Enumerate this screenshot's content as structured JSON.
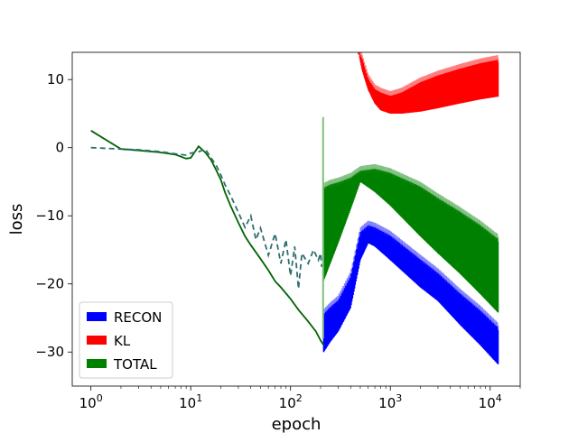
{
  "chart_data": {
    "type": "line",
    "xlabel": "epoch",
    "ylabel": "loss",
    "x_scale": "log",
    "xlim": [
      0.65,
      20000
    ],
    "ylim": [
      -35,
      14
    ],
    "x_ticks": [
      1,
      10,
      100,
      1000,
      10000
    ],
    "x_tick_labels": [
      "10^0",
      "10^1",
      "10^2",
      "10^3",
      "10^4"
    ],
    "y_ticks": [
      -30,
      -20,
      -10,
      0,
      10
    ],
    "y_tick_labels": [
      "−30",
      "−20",
      "−10",
      "0",
      "10"
    ],
    "grid": false,
    "legend_position": "lower-left",
    "legend": [
      {
        "label": "RECON",
        "color": "#0000ff"
      },
      {
        "label": "KL",
        "color": "#ff0000"
      },
      {
        "label": "TOTAL",
        "color": "#008000"
      }
    ],
    "series": [
      {
        "name": "TOTAL",
        "color": "#006400",
        "style": "solid",
        "x": [
          1,
          2,
          3,
          5,
          7,
          9,
          10,
          12,
          14,
          16,
          18,
          20,
          22,
          25,
          30,
          35,
          40,
          50,
          60,
          70,
          80,
          100,
          120,
          150,
          180,
          200,
          215
        ],
        "y": [
          2.5,
          -0.2,
          -0.4,
          -0.7,
          -1.0,
          -1.6,
          -1.5,
          0.2,
          -0.7,
          -1.8,
          -3.3,
          -4.7,
          -6.5,
          -8.5,
          -11.0,
          -13.0,
          -14.3,
          -16.3,
          -18.0,
          -19.6,
          -20.5,
          -22.2,
          -23.8,
          -25.5,
          -27.0,
          -28.3,
          -29.0
        ]
      },
      {
        "name": "",
        "color": "#2f6f6f",
        "style": "dashed",
        "x": [
          1,
          2,
          3,
          5,
          7,
          9,
          10,
          12,
          14,
          16,
          18,
          20,
          22,
          25,
          30,
          35,
          40,
          45,
          50,
          60,
          70,
          80,
          90,
          100,
          110,
          120,
          130,
          150,
          170,
          190,
          200,
          205
        ],
        "y": [
          0,
          -0.2,
          -0.3,
          -0.6,
          -0.9,
          -1.1,
          -0.8,
          -0.6,
          -0.2,
          -1.5,
          -2.6,
          -4.0,
          -5.4,
          -7.0,
          -9.5,
          -11.7,
          -10.0,
          -13.5,
          -11.8,
          -15.8,
          -12.6,
          -17.0,
          -13.5,
          -18.8,
          -14.5,
          -20.7,
          -15.5,
          -17.0,
          -15.0,
          -16.5,
          -15.5,
          -17.5
        ]
      }
    ],
    "bands": [
      {
        "name": "TOTAL",
        "color": "#008000",
        "light": "#7fbf7f",
        "x": [
          215,
          250,
          300,
          400,
          500,
          700,
          1000,
          2000,
          3000,
          5000,
          8000,
          12000
        ],
        "y_low": [
          -19.5,
          -17.0,
          -14.0,
          -9.0,
          -5.0,
          -6.5,
          -8.5,
          -13.0,
          -15.5,
          -18.5,
          -21.5,
          -24.2
        ],
        "y_high": [
          -6.0,
          -5.5,
          -5.2,
          -4.5,
          -3.5,
          -3.2,
          -3.8,
          -5.8,
          -7.5,
          -9.5,
          -11.5,
          -13.5
        ]
      },
      {
        "name": "RECON",
        "color": "#0000ff",
        "light": "#7f7fff",
        "x": [
          215,
          250,
          300,
          400,
          500,
          600,
          700,
          1000,
          2000,
          3000,
          5000,
          8000,
          12000
        ],
        "y_low": [
          -30.0,
          -28.5,
          -27.0,
          -23.5,
          -16.5,
          -14.0,
          -14.5,
          -16.5,
          -20.5,
          -22.5,
          -26.0,
          -29.0,
          -31.8
        ],
        "y_high": [
          -24.5,
          -23.5,
          -22.5,
          -19.0,
          -12.5,
          -11.5,
          -11.8,
          -13.0,
          -16.5,
          -18.5,
          -21.5,
          -24.0,
          -26.5
        ]
      },
      {
        "name": "KL",
        "color": "#ff0000",
        "light": "#ff7f7f",
        "x": [
          480,
          520,
          600,
          700,
          800,
          1000,
          1300,
          2000,
          3000,
          5000,
          8000,
          12000
        ],
        "y_low": [
          14.0,
          11.5,
          8.5,
          6.5,
          5.5,
          5.0,
          5.0,
          5.3,
          5.8,
          6.5,
          7.1,
          7.5
        ],
        "y_high": [
          14.0,
          13.0,
          10.0,
          8.5,
          8.0,
          7.5,
          8.0,
          9.5,
          10.5,
          11.5,
          12.3,
          12.8
        ]
      }
    ]
  }
}
